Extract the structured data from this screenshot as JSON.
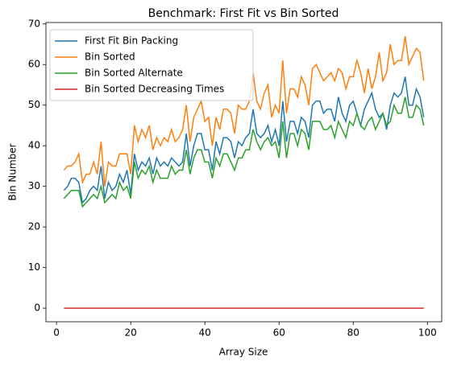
{
  "chart_data": {
    "type": "line",
    "title": "Benchmark: First Fit vs Bin Sorted",
    "xlabel": "Array Size",
    "ylabel": "Bin Number",
    "x": [
      2,
      3,
      4,
      5,
      6,
      7,
      8,
      9,
      10,
      11,
      12,
      13,
      14,
      15,
      16,
      17,
      18,
      19,
      20,
      21,
      22,
      23,
      24,
      25,
      26,
      27,
      28,
      29,
      30,
      31,
      32,
      33,
      34,
      35,
      36,
      37,
      38,
      39,
      40,
      41,
      42,
      43,
      44,
      45,
      46,
      47,
      48,
      49,
      50,
      51,
      52,
      53,
      54,
      55,
      56,
      57,
      58,
      59,
      60,
      61,
      62,
      63,
      64,
      65,
      66,
      67,
      68,
      69,
      70,
      71,
      72,
      73,
      74,
      75,
      76,
      77,
      78,
      79,
      80,
      81,
      82,
      83,
      84,
      85,
      86,
      87,
      88,
      89,
      90,
      91,
      92,
      93,
      94,
      95,
      96,
      97,
      98,
      99
    ],
    "series": [
      {
        "name": "First Fit Bin Packing",
        "color": "#1f77b4",
        "values": [
          29,
          30,
          32,
          32,
          31,
          26,
          27,
          29,
          30,
          29,
          35,
          27,
          31,
          29,
          30,
          33,
          31,
          34,
          28,
          38,
          34,
          36,
          35,
          37,
          33,
          37,
          35,
          36,
          35,
          37,
          36,
          35,
          36,
          43,
          35,
          40,
          43,
          43,
          39,
          39,
          34,
          41,
          38,
          42,
          42,
          41,
          37,
          41,
          40,
          42,
          43,
          49,
          43,
          42,
          43,
          45,
          41,
          44,
          40,
          51,
          41,
          46,
          46,
          43,
          47,
          46,
          42,
          50,
          51,
          51,
          48,
          49,
          49,
          46,
          52,
          48,
          46,
          50,
          51,
          48,
          45,
          49,
          51,
          53,
          49,
          47,
          48,
          44,
          50,
          53,
          52,
          53,
          57,
          50,
          50,
          54,
          52,
          47
        ]
      },
      {
        "name": "Bin Sorted",
        "color": "#ff7f0e",
        "values": [
          34,
          35,
          35,
          36,
          38,
          31,
          33,
          33,
          36,
          33,
          41,
          30,
          36,
          35,
          35,
          38,
          38,
          38,
          33,
          45,
          41,
          44,
          42,
          45,
          39,
          42,
          40,
          42,
          41,
          44,
          41,
          42,
          44,
          50,
          41,
          47,
          49,
          51,
          46,
          47,
          40,
          47,
          44,
          49,
          49,
          48,
          43,
          50,
          49,
          49,
          51,
          58,
          51,
          49,
          53,
          55,
          47,
          50,
          48,
          61,
          48,
          54,
          54,
          52,
          57,
          55,
          50,
          59,
          60,
          58,
          56,
          57,
          58,
          56,
          59,
          58,
          54,
          57,
          57,
          61,
          58,
          53,
          59,
          54,
          57,
          63,
          56,
          58,
          65,
          60,
          61,
          61,
          67,
          60,
          62,
          64,
          63,
          56
        ]
      },
      {
        "name": "Bin Sorted Alternate",
        "color": "#2ca02c",
        "values": [
          27,
          28,
          29,
          29,
          29,
          25,
          26,
          27,
          28,
          27,
          30,
          26,
          27,
          28,
          27,
          31,
          29,
          30,
          27,
          36,
          32,
          34,
          33,
          35,
          31,
          34,
          32,
          32,
          32,
          35,
          33,
          34,
          34,
          39,
          33,
          37,
          39,
          39,
          36,
          36,
          32,
          37,
          35,
          38,
          38,
          36,
          34,
          37,
          37,
          39,
          39,
          44,
          41,
          39,
          41,
          42,
          40,
          41,
          37,
          46,
          37,
          43,
          43,
          40,
          44,
          43,
          39,
          46,
          46,
          46,
          44,
          44,
          45,
          42,
          46,
          44,
          42,
          46,
          45,
          48,
          45,
          44,
          46,
          47,
          44,
          46,
          48,
          45,
          46,
          50,
          48,
          48,
          52,
          47,
          47,
          50,
          49,
          45
        ]
      },
      {
        "name": "Bin Sorted Decreasing Times",
        "color": "#d62728",
        "values": [
          0,
          0,
          0,
          0,
          0,
          0,
          0,
          0,
          0,
          0,
          0,
          0,
          0,
          0,
          0,
          0,
          0,
          0,
          0,
          0,
          0,
          0,
          0,
          0,
          0,
          0,
          0,
          0,
          0,
          0,
          0,
          0,
          0,
          0,
          0,
          0,
          0,
          0,
          0,
          0,
          0,
          0,
          0,
          0,
          0,
          0,
          0,
          0,
          0,
          0,
          0,
          0,
          0,
          0,
          0,
          0,
          0,
          0,
          0,
          0,
          0,
          0,
          0,
          0,
          0,
          0,
          0,
          0,
          0,
          0,
          0,
          0,
          0,
          0,
          0,
          0,
          0,
          0,
          0,
          0,
          0,
          0,
          0,
          0,
          0,
          0,
          0,
          0,
          0,
          0,
          0,
          0,
          0,
          0,
          0,
          0,
          0,
          0
        ]
      }
    ],
    "xlim": [
      -2.85,
      103.85
    ],
    "ylim": [
      -3.35,
      70.35
    ],
    "xticks": [
      0,
      20,
      40,
      60,
      80,
      100
    ],
    "yticks": [
      0,
      10,
      20,
      30,
      40,
      50,
      60,
      70
    ],
    "legend": "upper left"
  }
}
